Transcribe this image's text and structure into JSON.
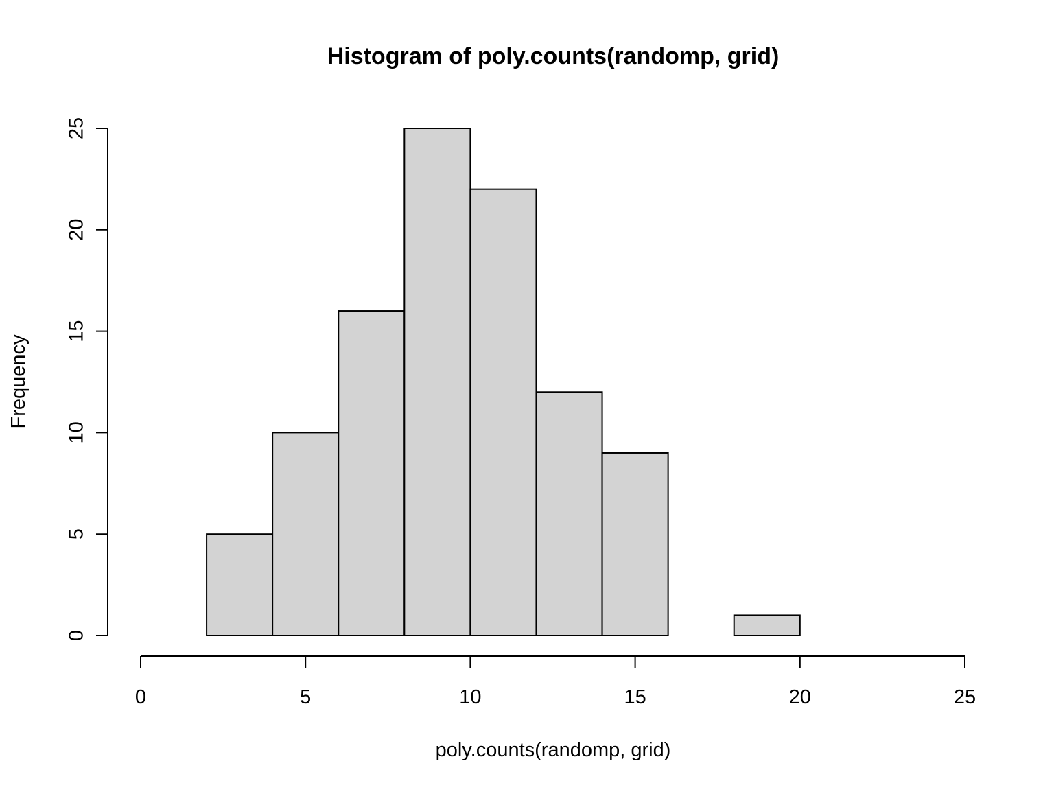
{
  "chart_data": {
    "type": "bar",
    "title": "Histogram of poly.counts(randomp, grid)",
    "xlabel": "poly.counts(randomp, grid)",
    "ylabel": "Frequency",
    "xlim": [
      0,
      25
    ],
    "ylim": [
      0,
      25
    ],
    "x_ticks": [
      0,
      5,
      10,
      15,
      20,
      25
    ],
    "y_ticks": [
      0,
      5,
      10,
      15,
      20,
      25
    ],
    "bins": [
      {
        "start": 2,
        "end": 4,
        "count": 5
      },
      {
        "start": 4,
        "end": 6,
        "count": 10
      },
      {
        "start": 6,
        "end": 8,
        "count": 16
      },
      {
        "start": 8,
        "end": 10,
        "count": 25
      },
      {
        "start": 10,
        "end": 12,
        "count": 22
      },
      {
        "start": 12,
        "end": 14,
        "count": 12
      },
      {
        "start": 14,
        "end": 16,
        "count": 9
      },
      {
        "start": 16,
        "end": 18,
        "count": 0
      },
      {
        "start": 18,
        "end": 20,
        "count": 1
      }
    ],
    "bar_fill": "#d3d3d3",
    "bar_stroke": "#000000",
    "grid": false,
    "legend": "none"
  }
}
